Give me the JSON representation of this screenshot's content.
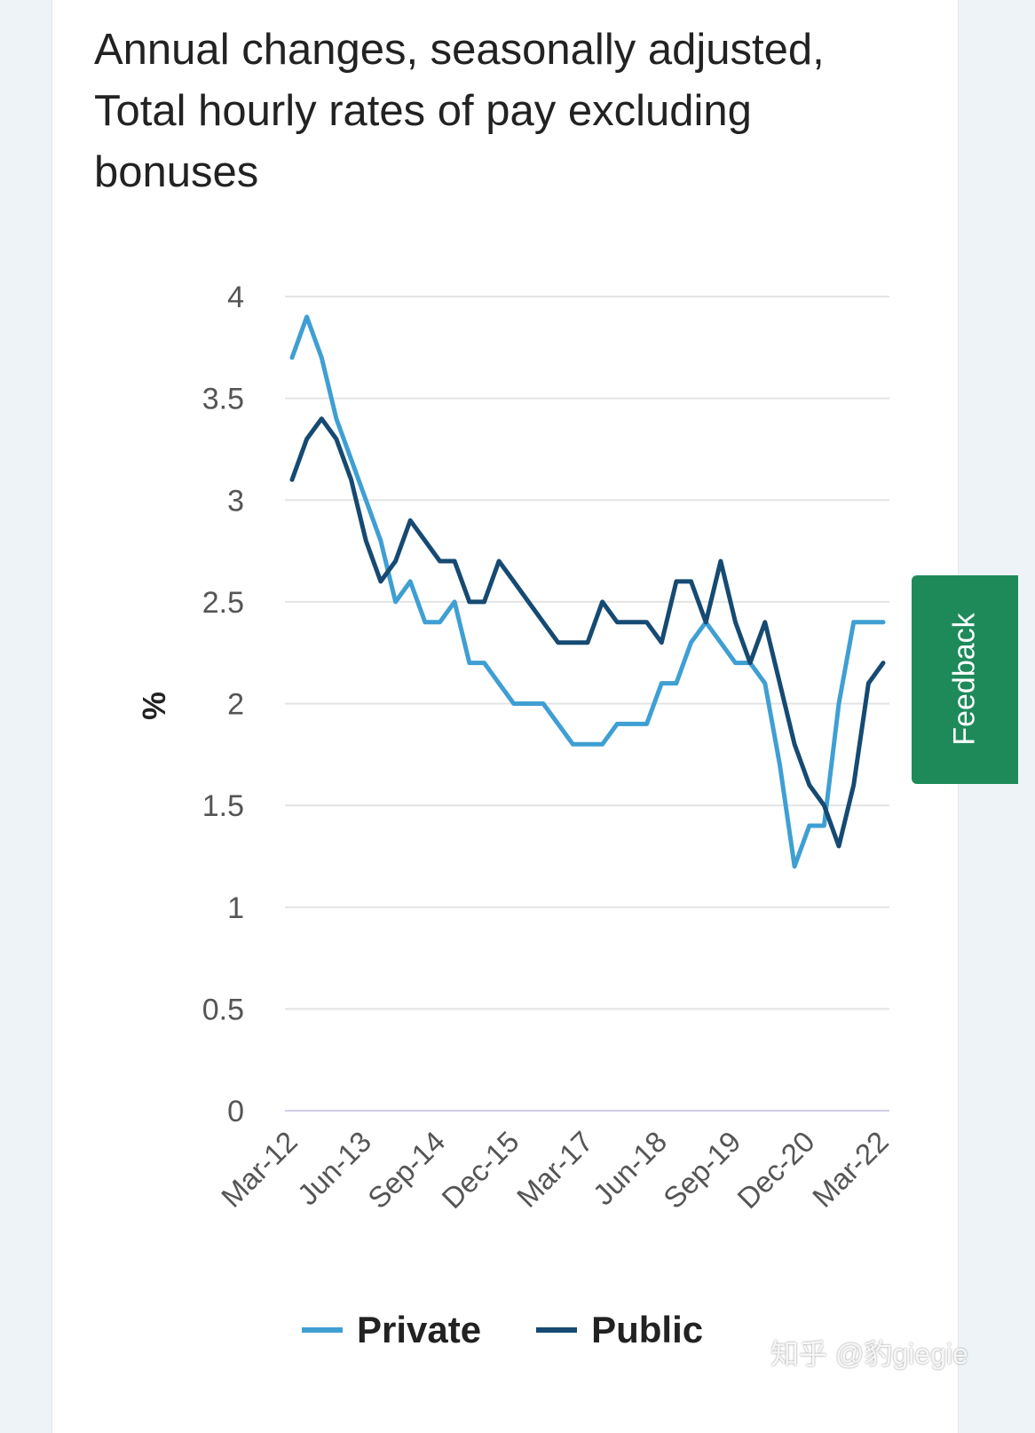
{
  "chart_data": {
    "type": "line",
    "title": "Annual changes, seasonally adjusted, Total hourly rates of pay excluding bonuses",
    "ylabel": "%",
    "xlabel": "",
    "ylim": [
      0,
      4
    ],
    "yticks": [
      "0",
      "0.5",
      "1",
      "1.5",
      "2",
      "2.5",
      "3",
      "3.5",
      "4"
    ],
    "grid": true,
    "legend_position": "bottom",
    "xtick_labels": [
      "Mar-12",
      "Jun-13",
      "Sep-14",
      "Dec-15",
      "Mar-17",
      "Jun-18",
      "Sep-19",
      "Dec-20",
      "Mar-22"
    ],
    "x": [
      "Mar-12",
      "Jun-12",
      "Sep-12",
      "Dec-12",
      "Mar-13",
      "Jun-13",
      "Sep-13",
      "Dec-13",
      "Mar-14",
      "Jun-14",
      "Sep-14",
      "Dec-14",
      "Mar-15",
      "Jun-15",
      "Sep-15",
      "Dec-15",
      "Mar-16",
      "Jun-16",
      "Sep-16",
      "Dec-16",
      "Mar-17",
      "Jun-17",
      "Sep-17",
      "Dec-17",
      "Mar-18",
      "Jun-18",
      "Sep-18",
      "Dec-18",
      "Mar-19",
      "Jun-19",
      "Sep-19",
      "Dec-19",
      "Mar-20",
      "Jun-20",
      "Sep-20",
      "Dec-20",
      "Mar-21",
      "Jun-21",
      "Sep-21",
      "Dec-21",
      "Mar-22"
    ],
    "series": [
      {
        "name": "Private",
        "color": "#3f9fd3",
        "values": [
          3.7,
          3.9,
          3.7,
          3.4,
          3.2,
          3.0,
          2.8,
          2.5,
          2.6,
          2.4,
          2.4,
          2.5,
          2.2,
          2.2,
          2.1,
          2.0,
          2.0,
          2.0,
          1.9,
          1.8,
          1.8,
          1.8,
          1.9,
          1.9,
          1.9,
          2.1,
          2.1,
          2.3,
          2.4,
          2.3,
          2.2,
          2.2,
          2.1,
          1.7,
          1.2,
          1.4,
          1.4,
          2.0,
          2.4,
          2.4,
          2.4
        ]
      },
      {
        "name": "Public",
        "color": "#164a72",
        "values": [
          3.1,
          3.3,
          3.4,
          3.3,
          3.1,
          2.8,
          2.6,
          2.7,
          2.9,
          2.8,
          2.7,
          2.7,
          2.5,
          2.5,
          2.7,
          2.6,
          2.5,
          2.4,
          2.3,
          2.3,
          2.3,
          2.5,
          2.4,
          2.4,
          2.4,
          2.3,
          2.6,
          2.6,
          2.4,
          2.7,
          2.4,
          2.2,
          2.4,
          2.1,
          1.8,
          1.6,
          1.5,
          1.3,
          1.6,
          2.1,
          2.2
        ]
      }
    ]
  },
  "feedback_label": "Feedback",
  "watermark": "知乎 @豹giegie"
}
